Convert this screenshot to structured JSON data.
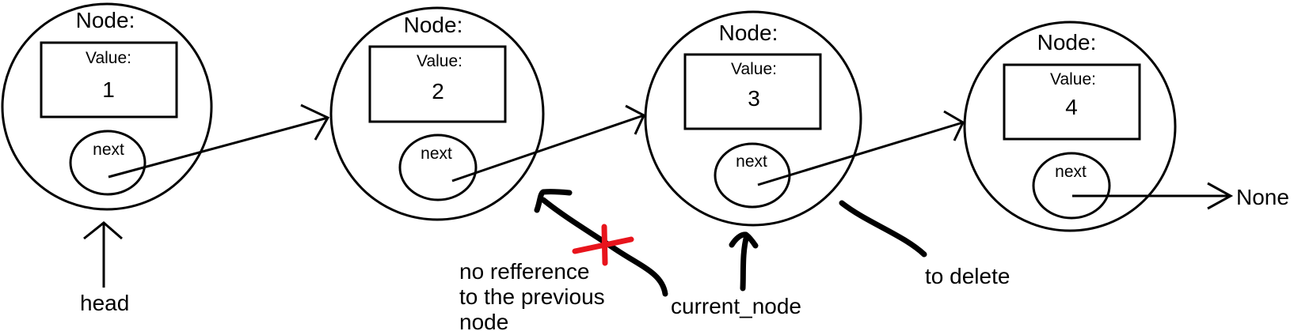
{
  "nodes": [
    {
      "title": "Node:",
      "value_label": "Value:",
      "value": "1",
      "next_label": "next"
    },
    {
      "title": "Node:",
      "value_label": "Value:",
      "value": "2",
      "next_label": "next"
    },
    {
      "title": "Node:",
      "value_label": "Value:",
      "value": "3",
      "next_label": "next"
    },
    {
      "title": "Node:",
      "value_label": "Value:",
      "value": "4",
      "next_label": "next"
    }
  ],
  "terminal": "None",
  "labels": {
    "head": "head",
    "current_node": "current_node",
    "to_delete": "to delete",
    "no_reference": [
      "no refference",
      "to the previous",
      "node"
    ]
  },
  "colors": {
    "ink": "#000000",
    "cross": "#e8141c"
  }
}
